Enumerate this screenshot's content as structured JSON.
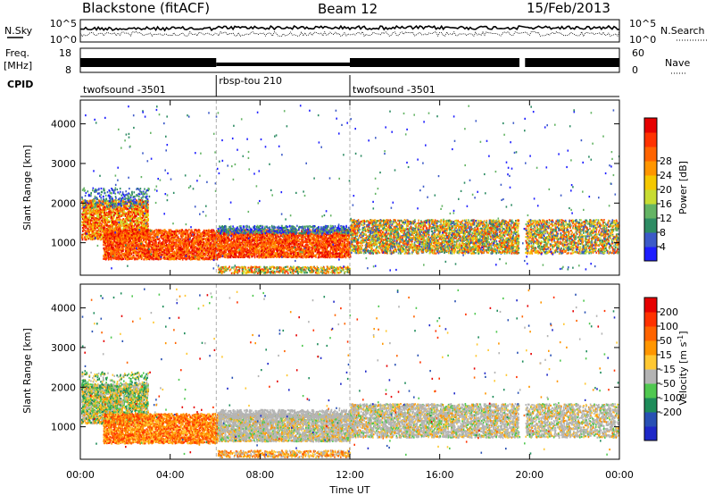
{
  "header": {
    "station": "Blackstone (fitACF)",
    "beam": "Beam 12",
    "date": "15/Feb/2013"
  },
  "noise_panel": {
    "left_label": "N.Sky",
    "right_label": "N.Search",
    "left_ticks": [
      "10^5",
      "10^0"
    ],
    "right_ticks": [
      "10^5",
      "10^0"
    ]
  },
  "freq_panel": {
    "left_label": "Freq.",
    "left_unit": "[MHz]",
    "right_label": "Nave",
    "left_ticks": [
      "18",
      "8"
    ],
    "right_ticks": [
      "60",
      "0"
    ]
  },
  "cpid_panel": {
    "label": "CPID",
    "segments": [
      {
        "text": "twofsound -3501",
        "start_h": 0,
        "end_h": 6.05
      },
      {
        "text": "rbsp-tou 210",
        "start_h": 6.05,
        "end_h": 12.0
      },
      {
        "text": "twofsound -3501",
        "start_h": 12.0,
        "end_h": 24
      }
    ]
  },
  "chart_data": [
    {
      "type": "heatmap",
      "name": "power",
      "ylabel": "Slant Range [km]",
      "ylim": [
        180,
        4600
      ],
      "yticks": [
        "1000",
        "2000",
        "3000",
        "4000"
      ],
      "xlim_hours": [
        0,
        24
      ],
      "colorbar": {
        "label": "Power [dB]",
        "ticks": [
          "4",
          "8",
          "12",
          "16",
          "20",
          "24",
          "28"
        ],
        "colors": [
          "#1e1eff",
          "#3c5ac8",
          "#2e8c64",
          "#64b464",
          "#c8dc32",
          "#f5c800",
          "#ff9600",
          "#ff6400",
          "#ff3200",
          "#e60000"
        ]
      }
    },
    {
      "type": "heatmap",
      "name": "velocity",
      "xlabel": "Time UT",
      "ylabel": "Slant Range [km]",
      "ylim": [
        180,
        4600
      ],
      "yticks": [
        "1000",
        "2000",
        "3000",
        "4000"
      ],
      "xlim_hours": [
        0,
        24
      ],
      "xticks": [
        "00:00",
        "04:00",
        "08:00",
        "12:00",
        "16:00",
        "20:00",
        "00:00"
      ],
      "colorbar": {
        "label": "Velocity [m s",
        "label_sup": "-1",
        "label_tail": "]",
        "ticks": [
          "200",
          "100",
          "50",
          "15",
          "-15",
          "-50",
          "-100",
          "-200"
        ],
        "colors": [
          "#1e28c8",
          "#2850b4",
          "#1e8c5a",
          "#50c850",
          "#b4b4b4",
          "#ffc832",
          "#ff9600",
          "#ff6400",
          "#ff3200",
          "#e60000"
        ]
      }
    }
  ]
}
